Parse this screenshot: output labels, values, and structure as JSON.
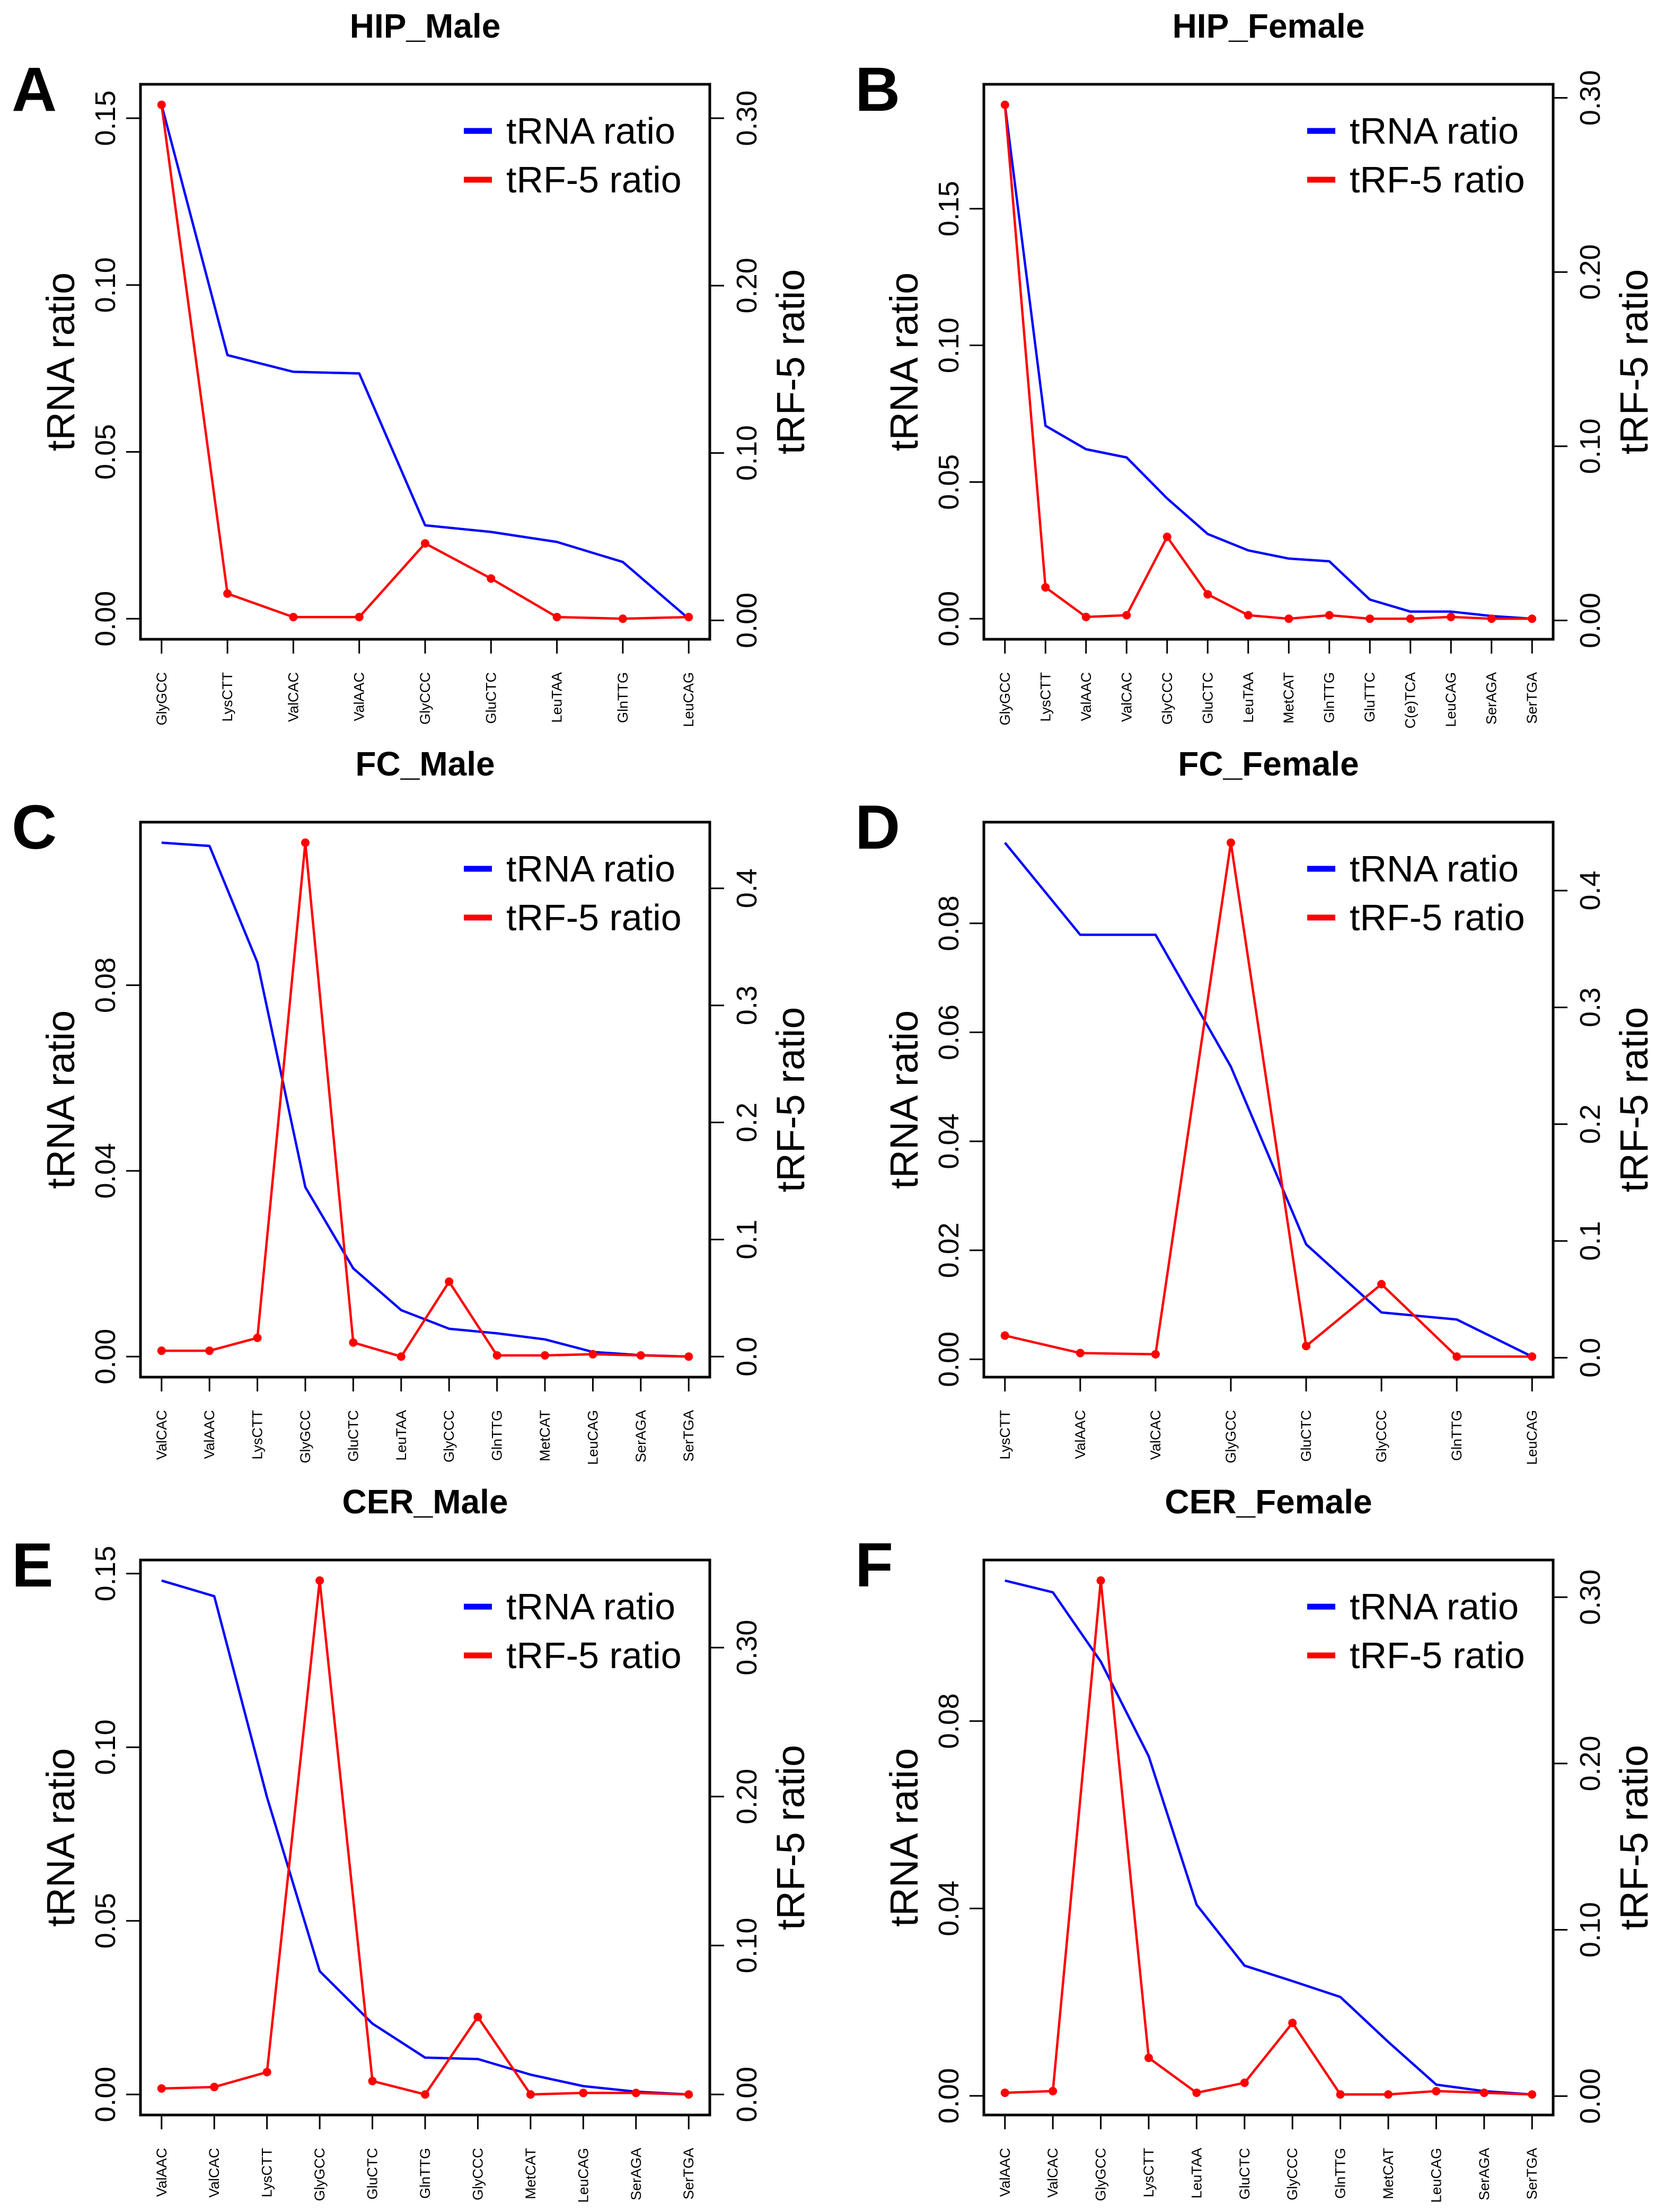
{
  "chart_data": [
    {
      "type": "line",
      "letter": "A",
      "title": "HIP_Male",
      "ylabel": "tRNA ratio",
      "y2label": "tRF-5 ratio",
      "legend": "top-right",
      "grid": false,
      "categories": [
        "GlyGCC",
        "LysCTT",
        "ValCAC",
        "ValAAC",
        "GlyCCC",
        "GluCTC",
        "LeuTAA",
        "GlnTTG",
        "LeuCAG"
      ],
      "yticks": [
        0,
        0.05,
        0.1,
        0.15
      ],
      "ytick_labels": [
        "0.00",
        "0.05",
        "0.10",
        "0.15"
      ],
      "y2ticks": [
        0,
        0.1,
        0.2,
        0.3
      ],
      "y2tick_labels": [
        "0.00",
        "0.10",
        "0.20",
        "0.30"
      ],
      "series": [
        {
          "name": "tRNA ratio",
          "axis": "left",
          "color": "#0000FF",
          "values": [
            0.154,
            0.079,
            0.074,
            0.0735,
            0.028,
            0.026,
            0.023,
            0.017,
            0.0
          ]
        },
        {
          "name": "tRF-5 ratio",
          "axis": "right",
          "color": "#FF0000",
          "values": [
            0.308,
            0.016,
            0.002,
            0.002,
            0.046,
            0.025,
            0.002,
            0.001,
            0.002
          ]
        }
      ]
    },
    {
      "type": "line",
      "letter": "B",
      "title": "HIP_Female",
      "ylabel": "tRNA ratio",
      "y2label": "tRF-5 ratio",
      "legend": "top-right",
      "grid": false,
      "categories": [
        "GlyGCC",
        "LysCTT",
        "ValAAC",
        "ValCAC",
        "GlyCCC",
        "GluCTC",
        "LeuTAA",
        "MetCAT",
        "GlnTTG",
        "GluTTC",
        "C(e)TCA",
        "LeuCAG",
        "SerAGA",
        "SerTGA"
      ],
      "yticks": [
        0,
        0.05,
        0.1,
        0.15
      ],
      "ytick_labels": [
        "0.00",
        "0.05",
        "0.10",
        "0.15"
      ],
      "y2ticks": [
        0,
        0.1,
        0.2,
        0.3
      ],
      "y2tick_labels": [
        "0.00",
        "0.10",
        "0.20",
        "0.30"
      ],
      "series": [
        {
          "name": "tRNA ratio",
          "axis": "left",
          "color": "#0000FF",
          "values": [
            0.188,
            0.0706,
            0.062,
            0.059,
            0.044,
            0.031,
            0.025,
            0.022,
            0.021,
            0.007,
            0.0026,
            0.0026,
            0.001,
            0.0
          ]
        },
        {
          "name": "tRF-5 ratio",
          "axis": "right",
          "color": "#FF0000",
          "values": [
            0.296,
            0.019,
            0.002,
            0.003,
            0.048,
            0.015,
            0.003,
            0.001,
            0.003,
            0.001,
            0.001,
            0.002,
            0.001,
            0.001
          ]
        }
      ]
    },
    {
      "type": "line",
      "letter": "C",
      "title": "FC_Male",
      "ylabel": "tRNA ratio",
      "y2label": "tRF-5 ratio",
      "legend": "top-right",
      "grid": false,
      "categories": [
        "ValCAC",
        "ValAAC",
        "LysCTT",
        "GlyGCC",
        "GluCTC",
        "LeuTAA",
        "GlyCCC",
        "GlnTTG",
        "MetCAT",
        "LeuCAG",
        "SerAGA",
        "SerTGA"
      ],
      "yticks": [
        0,
        0.04,
        0.08
      ],
      "ytick_labels": [
        "0.00",
        "0.04",
        "0.08"
      ],
      "y2ticks": [
        0,
        0.1,
        0.2,
        0.3,
        0.4
      ],
      "y2tick_labels": [
        "0.0",
        "0.1",
        "0.2",
        "0.3",
        "0.4"
      ],
      "series": [
        {
          "name": "tRNA ratio",
          "axis": "left",
          "color": "#0000FF",
          "values": [
            0.1107,
            0.11,
            0.0849,
            0.0365,
            0.019,
            0.01,
            0.006,
            0.005,
            0.0037,
            0.001,
            0.0003,
            0.0
          ]
        },
        {
          "name": "tRF-5 ratio",
          "axis": "right",
          "color": "#FF0000",
          "values": [
            0.005,
            0.005,
            0.016,
            0.439,
            0.012,
            0.0,
            0.064,
            0.001,
            0.001,
            0.002,
            0.001,
            0.0
          ]
        }
      ]
    },
    {
      "type": "line",
      "letter": "D",
      "title": "FC_Female",
      "ylabel": "tRNA ratio",
      "y2label": "tRF-5 ratio",
      "legend": "top-right",
      "grid": false,
      "categories": [
        "LysCTT",
        "ValAAC",
        "ValCAC",
        "GlyGCC",
        "GluCTC",
        "GlyCCC",
        "GlnTTG",
        "LeuCAG"
      ],
      "yticks": [
        0,
        0.02,
        0.04,
        0.06,
        0.08
      ],
      "ytick_labels": [
        "0.00",
        "0.02",
        "0.04",
        "0.06",
        "0.08"
      ],
      "y2ticks": [
        0,
        0.1,
        0.2,
        0.3,
        0.4
      ],
      "y2tick_labels": [
        "0.0",
        "0.1",
        "0.2",
        "0.3",
        "0.4"
      ],
      "series": [
        {
          "name": "tRNA ratio",
          "axis": "left",
          "color": "#0000FF",
          "values": [
            0.0948,
            0.0779,
            0.0779,
            0.0537,
            0.0211,
            0.0086,
            0.0073,
            0.0005
          ]
        },
        {
          "name": "tRF-5 ratio",
          "axis": "right",
          "color": "#FF0000",
          "values": [
            0.019,
            0.004,
            0.003,
            0.441,
            0.01,
            0.063,
            0.001,
            0.001
          ]
        }
      ]
    },
    {
      "type": "line",
      "letter": "E",
      "title": "CER_Male",
      "ylabel": "tRNA ratio",
      "y2label": "tRF-5 ratio",
      "legend": "top-right",
      "grid": false,
      "categories": [
        "ValAAC",
        "ValCAC",
        "LysCTT",
        "GlyGCC",
        "GluCTC",
        "GlnTTG",
        "GlyCCC",
        "MetCAT",
        "LeuCAG",
        "SerAGA",
        "SerTGA"
      ],
      "yticks": [
        0,
        0.05,
        0.1,
        0.15
      ],
      "ytick_labels": [
        "0.00",
        "0.05",
        "0.10",
        "0.15"
      ],
      "y2ticks": [
        0,
        0.1,
        0.2,
        0.3
      ],
      "y2tick_labels": [
        "0.00",
        "0.10",
        "0.20",
        "0.30"
      ],
      "series": [
        {
          "name": "tRNA ratio",
          "axis": "left",
          "color": "#0000FF",
          "values": [
            0.148,
            0.1435,
            0.0856,
            0.0355,
            0.0204,
            0.0106,
            0.0102,
            0.0057,
            0.0024,
            0.0008,
            0.0
          ]
        },
        {
          "name": "tRF-5 ratio",
          "axis": "right",
          "color": "#FF0000",
          "values": [
            0.004,
            0.005,
            0.015,
            0.345,
            0.009,
            0.0,
            0.052,
            0.0,
            0.001,
            0.001,
            0.0
          ]
        }
      ]
    },
    {
      "type": "line",
      "letter": "F",
      "title": "CER_Female",
      "ylabel": "tRNA ratio",
      "y2label": "tRF-5 ratio",
      "legend": "top-right",
      "grid": false,
      "categories": [
        "ValAAC",
        "ValCAC",
        "GlyGCC",
        "LysCTT",
        "LeuTAA",
        "GluCTC",
        "GlyCCC",
        "GlnTTG",
        "MetCAT",
        "LeuCAG",
        "SerAGA",
        "SerTGA"
      ],
      "yticks": [
        0,
        0.04,
        0.08
      ],
      "ytick_labels": [
        "0.00",
        "0.04",
        "0.08"
      ],
      "y2ticks": [
        0,
        0.1,
        0.2,
        0.3
      ],
      "y2tick_labels": [
        "0.00",
        "0.10",
        "0.20",
        "0.30"
      ],
      "series": [
        {
          "name": "tRNA ratio",
          "axis": "left",
          "color": "#0000FF",
          "values": [
            0.11,
            0.1075,
            0.0927,
            0.0725,
            0.0408,
            0.0278,
            0.0245,
            0.0211,
            0.0115,
            0.0024,
            0.001,
            0.0003
          ]
        },
        {
          "name": "tRF-5 ratio",
          "axis": "right",
          "color": "#FF0000",
          "values": [
            0.002,
            0.003,
            0.31,
            0.023,
            0.002,
            0.008,
            0.044,
            0.001,
            0.001,
            0.003,
            0.002,
            0.001
          ]
        }
      ]
    }
  ]
}
